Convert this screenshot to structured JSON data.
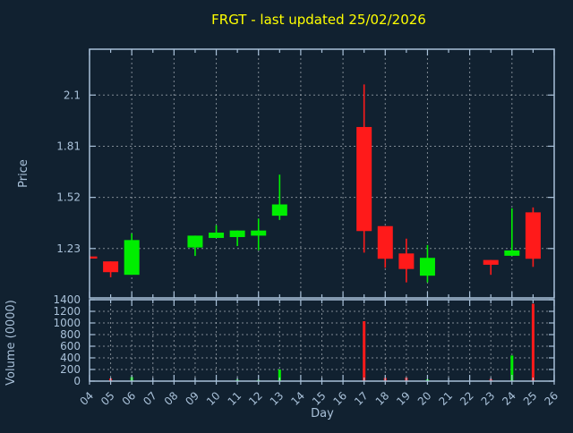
{
  "window": {
    "title": "FRGT - last updated 25/02/2026"
  },
  "chart_data": {
    "type": "candlestick",
    "title": "FRGT - last updated 25/02/2026",
    "xlabel": "Day",
    "x_ticks": [
      "04",
      "05",
      "06",
      "07",
      "08",
      "09",
      "10",
      "11",
      "12",
      "13",
      "14",
      "15",
      "16",
      "17",
      "18",
      "19",
      "20",
      "21",
      "22",
      "23",
      "24",
      "25",
      "26"
    ],
    "price_panel": {
      "ylabel": "Price",
      "yticks": [
        "1.23",
        "1.52",
        "1.81",
        "2.1"
      ],
      "ylim": [
        0.95,
        2.36
      ],
      "grid": "vertical lines every 2 days, horizontal at each price tick"
    },
    "volume_panel": {
      "ylabel": "Volume (0000)",
      "yticks": [
        "0",
        "200",
        "400",
        "600",
        "800",
        "1000",
        "1200",
        "1400"
      ],
      "ylim": [
        0,
        1400
      ],
      "grid": "vertical lines every day, horizontal at each volume tick"
    },
    "colors": {
      "background": "#112130",
      "title": "#ffff00",
      "axis_text": "#a9c1d9",
      "frame": "#a9c1d9",
      "grid": "#c9ced6",
      "up": "#00ee00",
      "down": "#ff1a1a"
    },
    "candles": [
      {
        "day": 4,
        "open": 1.185,
        "high": 1.19,
        "low": 1.17,
        "close": 1.173,
        "volume": 10
      },
      {
        "day": 5,
        "open": 1.157,
        "high": 1.157,
        "low": 1.067,
        "close": 1.096,
        "volume": 45
      },
      {
        "day": 6,
        "open": 1.081,
        "high": 1.315,
        "low": 1.081,
        "close": 1.278,
        "volume": 70
      },
      {
        "day": 9,
        "open": 1.236,
        "high": 1.303,
        "low": 1.188,
        "close": 1.303,
        "volume": 8
      },
      {
        "day": 10,
        "open": 1.29,
        "high": 1.362,
        "low": 1.29,
        "close": 1.32,
        "volume": 8
      },
      {
        "day": 11,
        "open": 1.295,
        "high": 1.332,
        "low": 1.244,
        "close": 1.332,
        "volume": 25
      },
      {
        "day": 12,
        "open": 1.303,
        "high": 1.4,
        "low": 1.22,
        "close": 1.332,
        "volume": 20
      },
      {
        "day": 13,
        "open": 1.416,
        "high": 1.649,
        "low": 1.392,
        "close": 1.48,
        "volume": 200
      },
      {
        "day": 17,
        "open": 1.919,
        "high": 2.16,
        "low": 1.207,
        "close": 1.329,
        "volume": 1030
      },
      {
        "day": 18,
        "open": 1.357,
        "high": 1.357,
        "low": 1.121,
        "close": 1.172,
        "volume": 55
      },
      {
        "day": 19,
        "open": 1.202,
        "high": 1.286,
        "low": 1.038,
        "close": 1.114,
        "volume": 60
      },
      {
        "day": 20,
        "open": 1.076,
        "high": 1.25,
        "low": 1.038,
        "close": 1.177,
        "volume": 30
      },
      {
        "day": 23,
        "open": 1.165,
        "high": 1.165,
        "low": 1.081,
        "close": 1.138,
        "volume": 35
      },
      {
        "day": 24,
        "open": 1.189,
        "high": 1.458,
        "low": 1.189,
        "close": 1.219,
        "volume": 440
      },
      {
        "day": 25,
        "open": 1.435,
        "high": 1.463,
        "low": 1.126,
        "close": 1.172,
        "volume": 1330
      }
    ]
  }
}
